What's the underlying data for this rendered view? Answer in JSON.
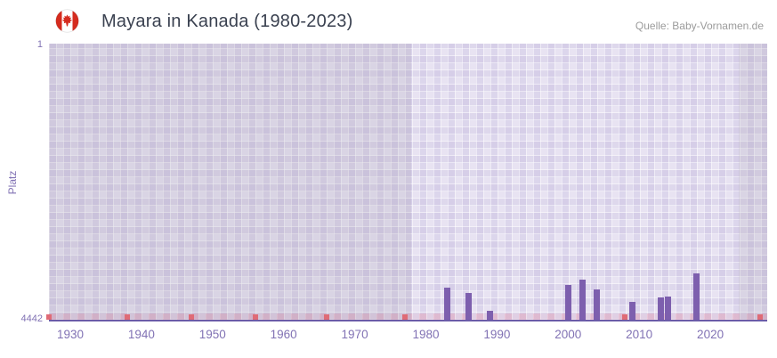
{
  "header": {
    "title": "Mayara in Kanada (1980-2023)",
    "source": "Quelle: Baby-Vornamen.de"
  },
  "chart_data": {
    "type": "bar",
    "title": "Mayara in Kanada (1980-2023)",
    "ylabel": "Platz",
    "y_axis": {
      "top_label": "1",
      "bottom_label": "4442",
      "min": 1,
      "max": 4442,
      "inverted": true
    },
    "x_range": [
      1927,
      2028
    ],
    "x_ticks": [
      "1930",
      "1940",
      "1950",
      "1960",
      "1970",
      "1980",
      "1990",
      "2000",
      "2010",
      "2020"
    ],
    "data_range_years": [
      1978,
      2024
    ],
    "bars": [
      {
        "year": 1983,
        "rank": 3930
      },
      {
        "year": 1986,
        "rank": 4010
      },
      {
        "year": 1989,
        "rank": 4300
      },
      {
        "year": 2000,
        "rank": 3880
      },
      {
        "year": 2002,
        "rank": 3800
      },
      {
        "year": 2004,
        "rank": 3960
      },
      {
        "year": 2009,
        "rank": 4150
      },
      {
        "year": 2013,
        "rank": 4080
      },
      {
        "year": 2014,
        "rank": 4070
      },
      {
        "year": 2018,
        "rank": 3700
      }
    ],
    "low_rank_mark_years": [
      1927,
      1938,
      1947,
      1956,
      1966,
      1977,
      2008,
      2027
    ],
    "colors": {
      "bar": "#7d5fae",
      "low_rank_mark": "#df6b76",
      "plot_background": "#e8e3f2",
      "axis_text": "#8172b4",
      "title_text": "#3a4150",
      "source_text": "#9b9b9b"
    }
  }
}
